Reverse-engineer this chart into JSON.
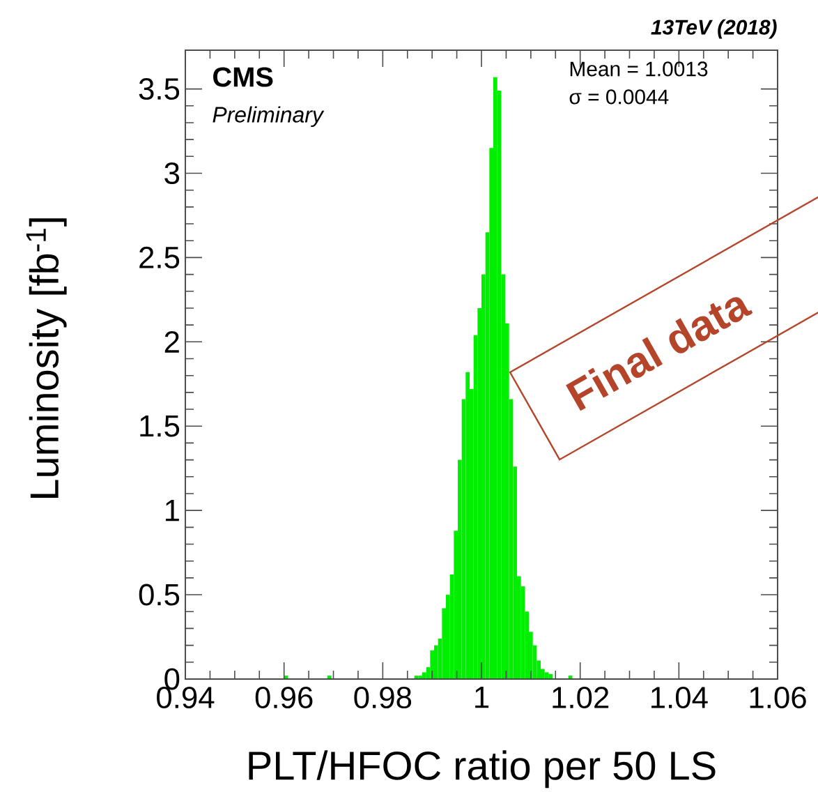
{
  "chart_data": {
    "type": "histogram",
    "title": "13TeV (2018)",
    "xlabel": "PLT/HFOC ratio per 50 LS",
    "ylabel": "Luminosity [fb$^{-1}$]",
    "annotations": [
      "CMS",
      "Preliminary",
      "Mean = 1.0013",
      "σ = 0.0044",
      "Final data"
    ],
    "bins": [
      0.96,
      0.9608,
      0.9616,
      0.9624,
      0.9632,
      0.964,
      0.9648,
      0.9656,
      0.9664,
      0.9672,
      0.968,
      0.9688,
      0.9696,
      0.9704,
      0.9712,
      0.972,
      0.9728,
      0.9736,
      0.9744,
      0.9752,
      0.976,
      0.9768,
      0.9776,
      0.9784,
      0.9792,
      0.98,
      0.9808,
      0.9816,
      0.9824,
      0.9832,
      0.984,
      0.9848,
      0.9856,
      0.9864,
      0.9872,
      0.988,
      0.9888,
      0.9896,
      0.9904,
      0.9912,
      0.992,
      0.9928,
      0.9936,
      0.9944,
      0.9952,
      0.996,
      0.9968,
      0.9976,
      0.9984,
      0.9992,
      1.0,
      1.0008,
      1.0016,
      1.0024,
      1.0032,
      1.004,
      1.0048,
      1.0056,
      1.0064,
      1.0072,
      1.008,
      1.0088,
      1.0096,
      1.0104,
      1.0112,
      1.012,
      1.0128,
      1.0136,
      1.0144,
      1.0152,
      1.016,
      1.0168,
      1.0176,
      1.0184,
      1.0192,
      1.02
    ],
    "values": [
      0.02,
      0,
      0,
      0,
      0,
      0,
      0,
      0,
      0,
      0,
      0,
      0.02,
      0,
      0,
      0,
      0,
      0,
      0,
      0,
      0,
      0,
      0,
      0,
      0,
      0,
      0,
      0,
      0,
      0,
      0,
      0,
      0,
      0,
      0.02,
      0.02,
      0.04,
      0.07,
      0.17,
      0.2,
      0.24,
      0.42,
      0.5,
      0.62,
      0.88,
      1.3,
      1.66,
      1.82,
      1.72,
      2.04,
      2.2,
      2.4,
      2.65,
      3.15,
      3.57,
      3.49,
      2.4,
      2.11,
      1.66,
      1.26,
      0.61,
      0.55,
      0.4,
      0.28,
      0.2,
      0.11,
      0.06,
      0.04,
      0.03,
      0,
      0,
      0,
      0,
      0.02,
      0,
      0
    ],
    "color": "#00ee00",
    "xlim": [
      0.94,
      1.06
    ],
    "xticks": [
      0.94,
      0.96,
      0.98,
      1,
      1.02,
      1.04,
      1.06
    ],
    "ylim": [
      0,
      3.73
    ],
    "yticks": [
      0,
      0.5,
      1,
      1.5,
      2,
      2.5,
      3,
      3.5
    ]
  }
}
